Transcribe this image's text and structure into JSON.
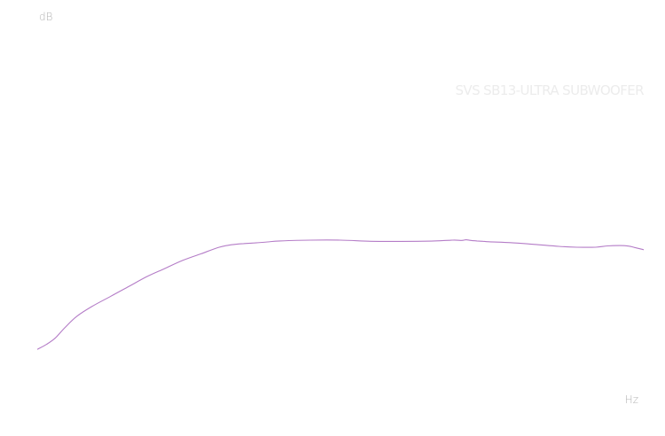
{
  "chart_data": {
    "type": "line",
    "title": "SVS SB13-ULTRA SUBWOOFER",
    "xlabel": "Hz",
    "ylabel": "dB",
    "grid": false,
    "legend": "none",
    "xlim": [
      0,
      100
    ],
    "ylim": [
      0,
      100
    ],
    "series": [
      {
        "color": "#b47cc7",
        "x": [
          0,
          1.5,
          3,
          4.5,
          6.5,
          9,
          12,
          15,
          18,
          21,
          24,
          27,
          30,
          32,
          34,
          36,
          38,
          40,
          45,
          50,
          55,
          60,
          65,
          68.5,
          70,
          70.7,
          71.5,
          72.5,
          73.5,
          74.5,
          78,
          82,
          86,
          89,
          92,
          94,
          96,
          97.5,
          98.5,
          100
        ],
        "y": [
          2,
          5,
          9,
          15,
          22,
          28,
          34,
          40,
          46,
          51,
          56,
          60,
          64,
          65.5,
          66.2,
          66.6,
          67.2,
          67.8,
          68.3,
          68.3,
          67.6,
          67.5,
          67.7,
          68.3,
          68.1,
          68.5,
          68.1,
          67.8,
          67.6,
          67.3,
          66.8,
          65.7,
          64.5,
          64,
          64,
          64.8,
          65,
          64.7,
          63.8,
          62.5
        ]
      }
    ]
  }
}
